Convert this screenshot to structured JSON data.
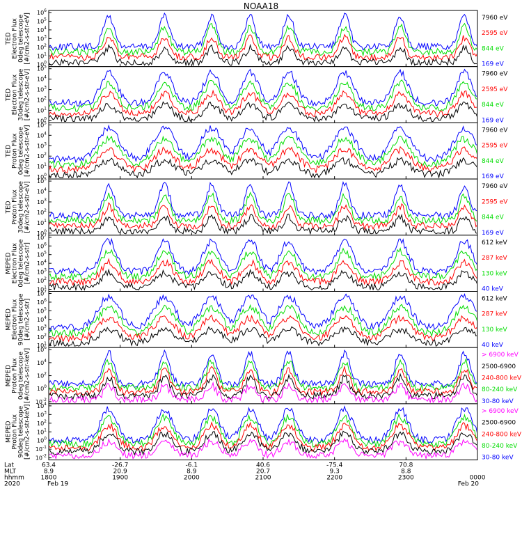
{
  "chart_data": {
    "type": "line",
    "title": "NOAA18",
    "x_ticks": [
      "1800",
      "1900",
      "2000",
      "2100",
      "2200",
      "2300",
      "0000"
    ],
    "x_range_hhmm": [
      "1800",
      "0000"
    ],
    "footer": {
      "row_labels": [
        "Lat",
        "MLT",
        "hhmm",
        "2020"
      ],
      "lat_values": [
        "63.4",
        "-26.7",
        "-6.1",
        "40.6",
        "-75.4",
        "70.8"
      ],
      "mlt_values": [
        "8.9",
        "20.9",
        "8.9",
        "20.7",
        "9.3",
        "8.8"
      ],
      "start_date": "Feb 19",
      "end_date": "Feb 20"
    },
    "panels": [
      {
        "ylabel": [
          "TED",
          "Electron Flux",
          "0deg telescope",
          "[#/cm2-s-str-eV]"
        ],
        "y_exponents": [
          0,
          1,
          2,
          3,
          4,
          5,
          6
        ],
        "series": [
          {
            "name": "7960 eV",
            "color": "#000000"
          },
          {
            "name": "2595 eV",
            "color": "#ff0000"
          },
          {
            "name": "844 eV",
            "color": "#00dd00"
          },
          {
            "name": "169 eV",
            "color": "#0000ff"
          }
        ]
      },
      {
        "ylabel": [
          "TED",
          "Electron Flux",
          "30deg telescope",
          "[#/cm2-s-str-eV]"
        ],
        "y_exponents": [
          0,
          1,
          2,
          3,
          4,
          5
        ],
        "series": [
          {
            "name": "7960 eV",
            "color": "#000000"
          },
          {
            "name": "2595 eV",
            "color": "#ff0000"
          },
          {
            "name": "844 eV",
            "color": "#00dd00"
          },
          {
            "name": "169 eV",
            "color": "#0000ff"
          }
        ]
      },
      {
        "ylabel": [
          "TED",
          "Proton Flux",
          "0deg telescope",
          "[#/cm2-s-str-eV]"
        ],
        "y_exponents": [
          0,
          1,
          2,
          3,
          4,
          5
        ],
        "series": [
          {
            "name": "7960 eV",
            "color": "#000000"
          },
          {
            "name": "2595 eV",
            "color": "#ff0000"
          },
          {
            "name": "844 eV",
            "color": "#00dd00"
          },
          {
            "name": "169 eV",
            "color": "#0000ff"
          }
        ]
      },
      {
        "ylabel": [
          "TED",
          "Proton Flux",
          "30deg telescope",
          "[#/cm2-s-str-eV]"
        ],
        "y_exponents": [
          0,
          1,
          2,
          3,
          4,
          5
        ],
        "series": [
          {
            "name": "7960 eV",
            "color": "#000000"
          },
          {
            "name": "2595 eV",
            "color": "#ff0000"
          },
          {
            "name": "844 eV",
            "color": "#00dd00"
          },
          {
            "name": "169 eV",
            "color": "#0000ff"
          }
        ]
      },
      {
        "ylabel": [
          "MEPED",
          "Electron Flux",
          "0deg telescope",
          "[#/cm2-s-str]"
        ],
        "y_exponents": [
          1,
          2,
          3,
          4,
          5,
          6,
          7
        ],
        "series": [
          {
            "name": "612 keV",
            "color": "#000000"
          },
          {
            "name": "287 keV",
            "color": "#ff0000"
          },
          {
            "name": "130 keV",
            "color": "#00dd00"
          },
          {
            "name": "40 keV",
            "color": "#0000ff"
          }
        ]
      },
      {
        "ylabel": [
          "MEPED",
          "Electron Flux",
          "90deg telescope",
          "[#/cm2-s-str]"
        ],
        "y_exponents": [
          1,
          2,
          3,
          4,
          5,
          6,
          7
        ],
        "series": [
          {
            "name": "612 keV",
            "color": "#000000"
          },
          {
            "name": "287 keV",
            "color": "#ff0000"
          },
          {
            "name": "130 keV",
            "color": "#00dd00"
          },
          {
            "name": "40 keV",
            "color": "#0000ff"
          }
        ]
      },
      {
        "ylabel": [
          "MEPED",
          "Proton Flux",
          "0deg telescope",
          "[#/cm2-s-str-keV]"
        ],
        "y_exponents": [
          -2,
          0,
          2,
          4,
          6
        ],
        "series": [
          {
            "name": "> 6900 keV",
            "color": "#ff00ff"
          },
          {
            "name": "2500-6900",
            "color": "#000000"
          },
          {
            "name": "240-800 keV",
            "color": "#ff0000"
          },
          {
            "name": "80-240 keV",
            "color": "#00dd00"
          },
          {
            "name": "30-80 keV",
            "color": "#0000ff"
          }
        ]
      },
      {
        "ylabel": [
          "MEPED",
          "Proton Flux",
          "90deg telescope",
          "[#/cm2-s-str-keV]"
        ],
        "y_exponents": [
          -2,
          -1,
          0,
          1,
          2,
          3,
          4
        ],
        "series": [
          {
            "name": "> 6900 keV",
            "color": "#ff00ff"
          },
          {
            "name": "2500-6900",
            "color": "#000000"
          },
          {
            "name": "240-800 keV",
            "color": "#ff0000"
          },
          {
            "name": "80-240 keV",
            "color": "#00dd00"
          },
          {
            "name": "30-80 keV",
            "color": "#0000ff"
          }
        ]
      }
    ]
  }
}
